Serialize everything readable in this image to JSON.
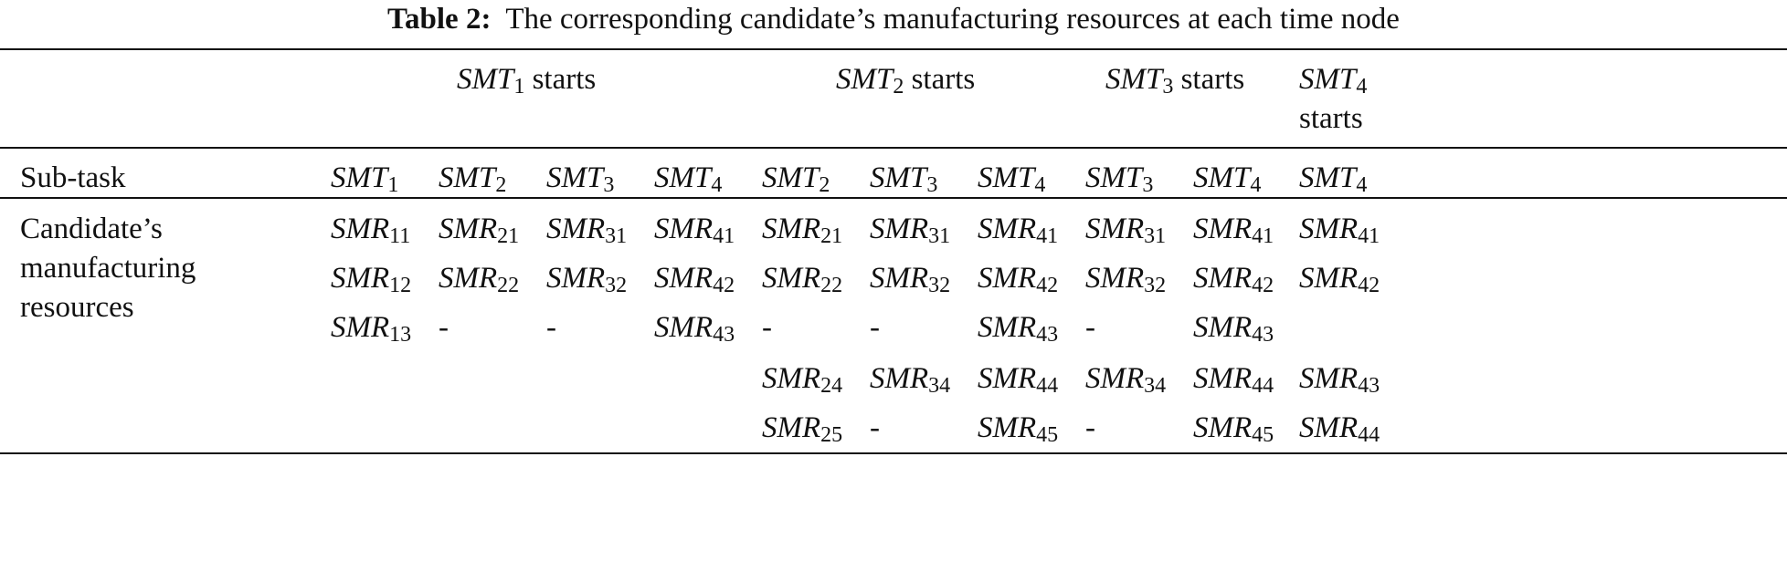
{
  "caption": {
    "label": "Table 2:",
    "text": "The corresponding candidate’s manufacturing resources at each time node"
  },
  "header_groups": [
    {
      "base": "SMT",
      "sub": "1",
      "text": "starts"
    },
    {
      "base": "SMT",
      "sub": "2",
      "text": "starts"
    },
    {
      "base": "SMT",
      "sub": "3",
      "text": "starts"
    },
    {
      "base": "SMT",
      "sub": "4",
      "text": "starts"
    }
  ],
  "subtask_row": {
    "label": "Sub-task",
    "cells": [
      {
        "base": "SMT",
        "sub": "1"
      },
      {
        "base": "SMT",
        "sub": "2"
      },
      {
        "base": "SMT",
        "sub": "3"
      },
      {
        "base": "SMT",
        "sub": "4"
      },
      {
        "base": "SMT",
        "sub": "2"
      },
      {
        "base": "SMT",
        "sub": "3"
      },
      {
        "base": "SMT",
        "sub": "4"
      },
      {
        "base": "SMT",
        "sub": "3"
      },
      {
        "base": "SMT",
        "sub": "4"
      },
      {
        "base": "SMT",
        "sub": "4"
      }
    ]
  },
  "body": {
    "label": "Candidate’s manufacturing resources",
    "rows": [
      [
        {
          "base": "SMR",
          "sub": "11"
        },
        {
          "base": "SMR",
          "sub": "21"
        },
        {
          "base": "SMR",
          "sub": "31"
        },
        {
          "base": "SMR",
          "sub": "41"
        },
        {
          "base": "SMR",
          "sub": "21"
        },
        {
          "base": "SMR",
          "sub": "31"
        },
        {
          "base": "SMR",
          "sub": "41"
        },
        {
          "base": "SMR",
          "sub": "31"
        },
        {
          "base": "SMR",
          "sub": "41"
        },
        {
          "base": "SMR",
          "sub": "41"
        }
      ],
      [
        {
          "base": "SMR",
          "sub": "12"
        },
        {
          "base": "SMR",
          "sub": "22"
        },
        {
          "base": "SMR",
          "sub": "32"
        },
        {
          "base": "SMR",
          "sub": "42"
        },
        {
          "base": "SMR",
          "sub": "22"
        },
        {
          "base": "SMR",
          "sub": "32"
        },
        {
          "base": "SMR",
          "sub": "42"
        },
        {
          "base": "SMR",
          "sub": "32"
        },
        {
          "base": "SMR",
          "sub": "42"
        },
        {
          "base": "SMR",
          "sub": "42"
        }
      ],
      [
        {
          "base": "SMR",
          "sub": "13"
        },
        "-",
        "-",
        {
          "base": "SMR",
          "sub": "43"
        },
        "-",
        "-",
        {
          "base": "SMR",
          "sub": "43"
        },
        "-",
        {
          "base": "SMR",
          "sub": "43"
        },
        null
      ],
      [
        null,
        null,
        null,
        null,
        {
          "base": "SMR",
          "sub": "24"
        },
        {
          "base": "SMR",
          "sub": "34"
        },
        {
          "base": "SMR",
          "sub": "44"
        },
        {
          "base": "SMR",
          "sub": "34"
        },
        {
          "base": "SMR",
          "sub": "44"
        },
        {
          "base": "SMR",
          "sub": "43"
        }
      ],
      [
        null,
        null,
        null,
        null,
        {
          "base": "SMR",
          "sub": "25"
        },
        "-",
        {
          "base": "SMR",
          "sub": "45"
        },
        "-",
        {
          "base": "SMR",
          "sub": "45"
        },
        {
          "base": "SMR",
          "sub": "44"
        }
      ]
    ]
  }
}
